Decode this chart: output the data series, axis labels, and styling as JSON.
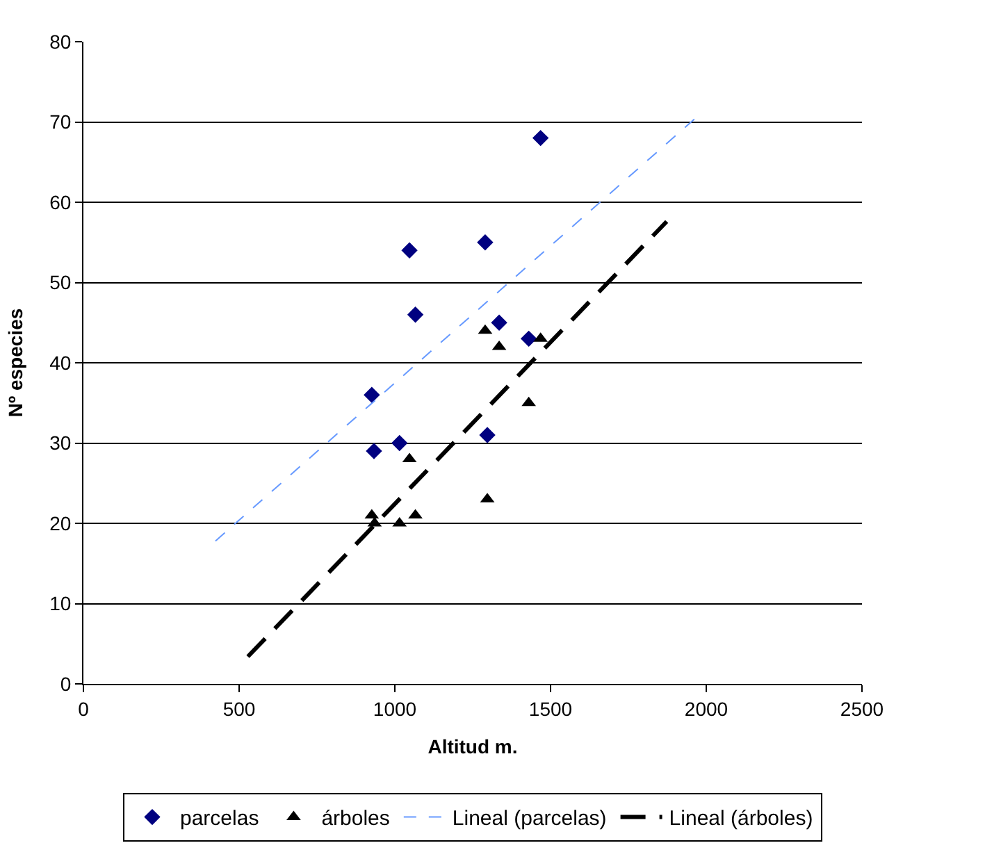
{
  "chart_data": {
    "type": "scatter",
    "xlabel": "Altitud m.",
    "ylabel": "Nº especies",
    "xlim": [
      0,
      2500
    ],
    "xticks": [
      0,
      500,
      1000,
      1500,
      2000,
      2500
    ],
    "ylim": [
      0,
      80
    ],
    "yticks": [
      0,
      10,
      20,
      30,
      40,
      50,
      60,
      70,
      80
    ],
    "grid": "y",
    "legend": "bottom",
    "series": [
      {
        "name": "parcelas",
        "marker": "diamond",
        "color": "#000080",
        "x": [
          1468,
          1047,
          1290,
          1066,
          1335,
          1430,
          926,
          1015,
          933,
          1297
        ],
        "values": [
          68,
          54,
          55,
          46,
          45,
          43,
          36,
          30,
          29,
          31
        ]
      },
      {
        "name": "árboles",
        "marker": "triangle",
        "color": "#000000",
        "x": [
          1290,
          1335,
          1468,
          1430,
          1047,
          1297,
          926,
          935,
          1015,
          1066
        ],
        "values": [
          44,
          42,
          43,
          35,
          28,
          23,
          21,
          20,
          20,
          21
        ]
      },
      {
        "name": "Lineal (parcelas)",
        "type": "line",
        "marker": "none",
        "line_style": "dashed",
        "color": "#6699ff",
        "x": [
          424,
          1972
        ],
        "values": [
          17.8,
          70.7
        ]
      },
      {
        "name": "Lineal (árboles)",
        "type": "line",
        "marker": "none",
        "line_style": "dashed",
        "color": "#000000",
        "x": [
          528,
          1873
        ],
        "values": [
          3.4,
          57.6
        ]
      }
    ]
  }
}
